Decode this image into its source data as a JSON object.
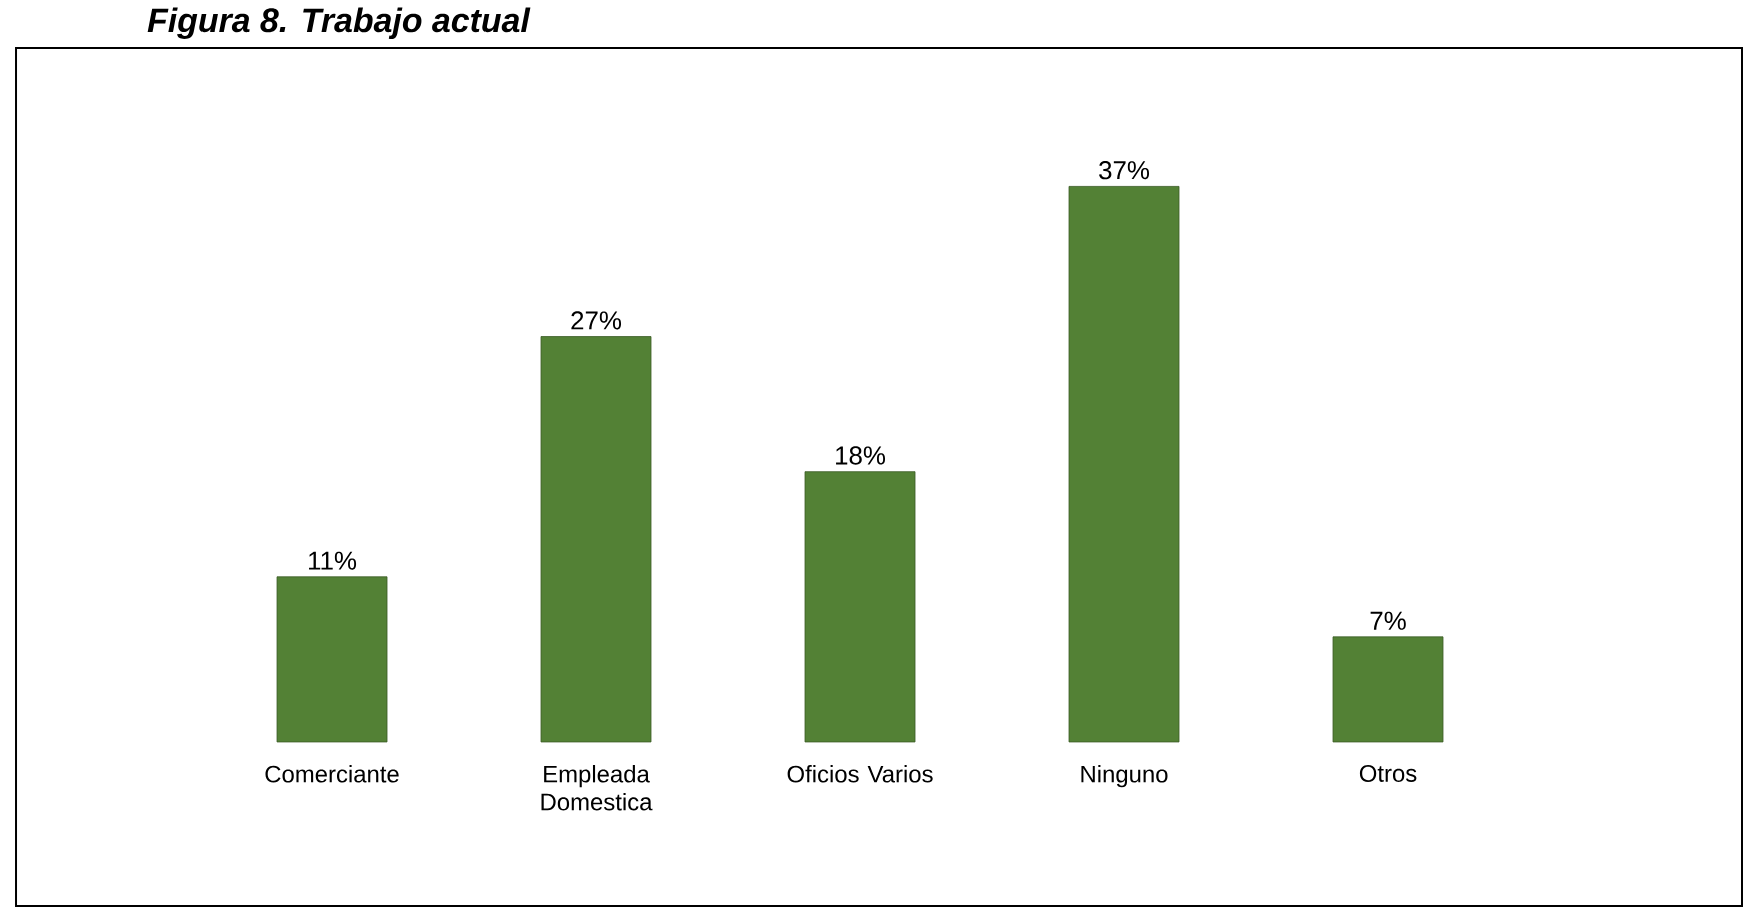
{
  "chart_data": {
    "type": "bar",
    "title": "Figura 8. Trabajo actual",
    "categories": [
      "Comerciante",
      "Empleada Domestica",
      "Oficios Varios",
      "Ninguno",
      "Otros"
    ],
    "values": [
      11,
      27,
      18,
      37,
      7
    ],
    "color": "#538135",
    "data_labels": true,
    "value_labels": [
      "11%",
      "27%",
      "18%",
      "37%",
      "7%"
    ]
  }
}
